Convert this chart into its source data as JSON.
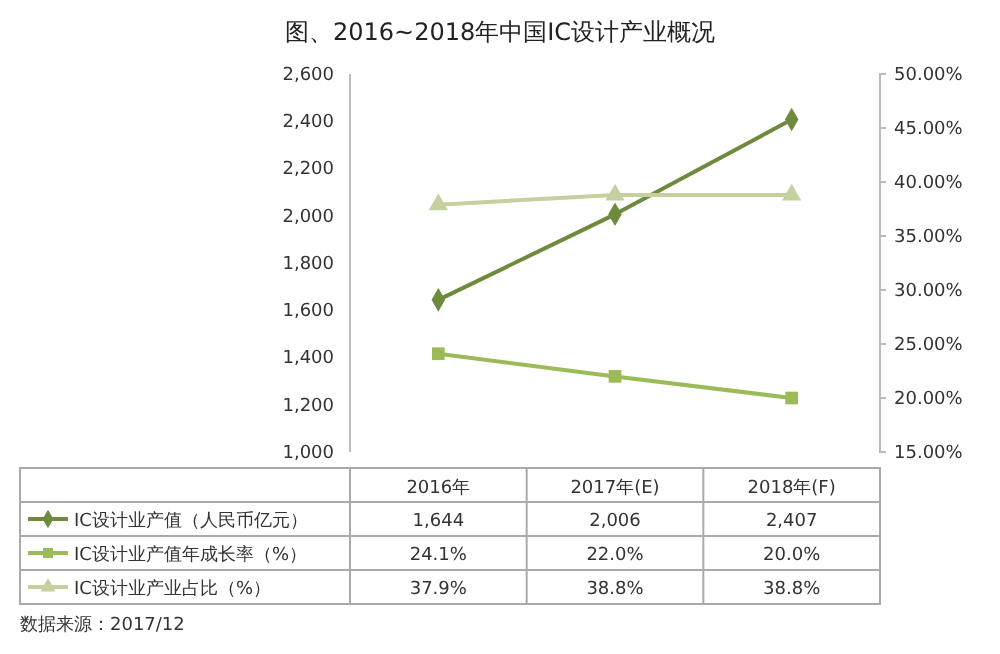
{
  "chart_data": {
    "type": "line",
    "title": "图、2016~2018年中国IC设计产业概况",
    "categories": [
      "2016年",
      "2017年(E)",
      "2018年(F)"
    ],
    "series": [
      {
        "name": "IC设计业产值（人民币亿元）",
        "color": "#6e8b3d",
        "marker": "diamond",
        "values": [
          1644,
          2006,
          2407
        ],
        "value_labels": [
          "1,644",
          "2,006",
          "2,407"
        ]
      },
      {
        "name": "IC设计业产值年成长率（%）",
        "color": "#9bbb59",
        "marker": "square",
        "axis": "y2",
        "values": [
          24.1,
          22.0,
          20.0
        ],
        "value_labels": [
          "24.1%",
          "22.0%",
          "20.0%"
        ]
      },
      {
        "name": "IC设计业产业占比（%）",
        "color": "#c4d09e",
        "marker": "triangle",
        "axis": "y2",
        "values": [
          37.9,
          38.8,
          38.8
        ],
        "value_labels": [
          "37.9%",
          "38.8%",
          "38.8%"
        ]
      }
    ],
    "ylim": [
      1000,
      2600
    ],
    "yticks": [
      {
        "value": 1000,
        "label": "1,000"
      },
      {
        "value": 1200,
        "label": "1,200"
      },
      {
        "value": 1400,
        "label": "1,400"
      },
      {
        "value": 1600,
        "label": "1,600"
      },
      {
        "value": 1800,
        "label": "1,800"
      },
      {
        "value": 2000,
        "label": "2,000"
      },
      {
        "value": 2200,
        "label": "2,200"
      },
      {
        "value": 2400,
        "label": "2,400"
      },
      {
        "value": 2600,
        "label": "2,600"
      }
    ],
    "y2lim": [
      15,
      50
    ],
    "y2ticks": [
      {
        "value": 15,
        "label": "15.00%"
      },
      {
        "value": 20,
        "label": "20.00%"
      },
      {
        "value": 25,
        "label": "25.00%"
      },
      {
        "value": 30,
        "label": "30.00%"
      },
      {
        "value": 35,
        "label": "35.00%"
      },
      {
        "value": 40,
        "label": "40.00%"
      },
      {
        "value": 45,
        "label": "45.00%"
      },
      {
        "value": 50,
        "label": "50.00%"
      }
    ],
    "legend": "bottom",
    "grid": false,
    "annotations": [
      "数据来源：2017/12"
    ]
  }
}
